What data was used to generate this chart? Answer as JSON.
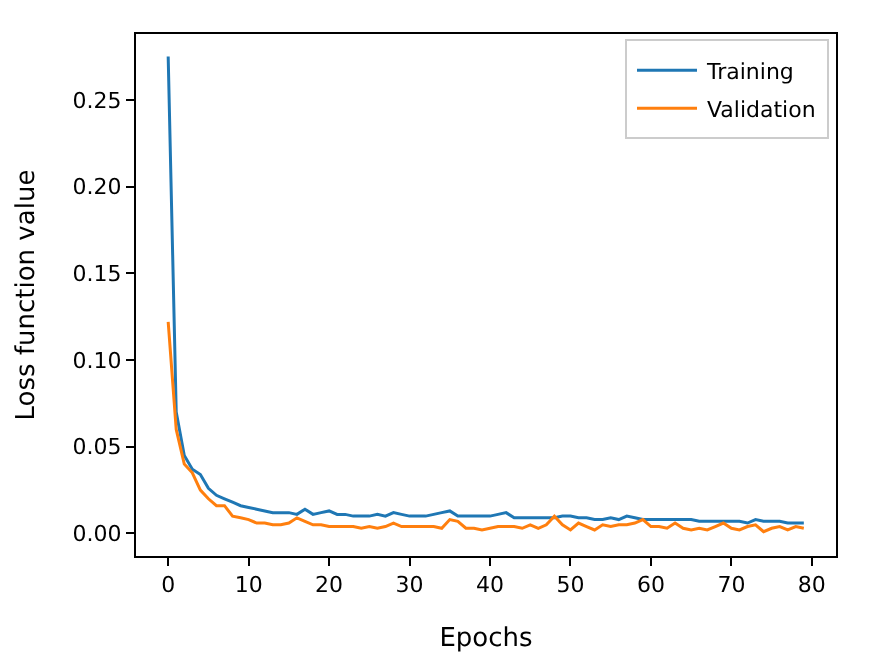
{
  "chart_data": {
    "type": "line",
    "xlabel": "Epochs",
    "ylabel": "Loss function value",
    "xlim": [
      -4,
      83
    ],
    "xticks": [
      0,
      10,
      20,
      30,
      40,
      50,
      60,
      70,
      80
    ],
    "ylim": [
      -0.013,
      0.288
    ],
    "yticks": [
      {
        "value": 0,
        "label": "0.00"
      },
      0.05,
      {
        "value": 0.1,
        "label": "0.10"
      },
      0.15,
      {
        "value": 0.2,
        "label": "0.20"
      },
      0.25
    ],
    "x": [
      0,
      1,
      2,
      3,
      4,
      5,
      6,
      7,
      8,
      9,
      10,
      11,
      12,
      13,
      14,
      15,
      16,
      17,
      18,
      19,
      20,
      21,
      22,
      23,
      24,
      25,
      26,
      27,
      28,
      29,
      30,
      31,
      32,
      33,
      34,
      35,
      36,
      37,
      38,
      39,
      40,
      41,
      42,
      43,
      44,
      45,
      46,
      47,
      48,
      49,
      50,
      51,
      52,
      53,
      54,
      55,
      56,
      57,
      58,
      59,
      60,
      61,
      62,
      63,
      64,
      65,
      66,
      67,
      68,
      69,
      70,
      71,
      72,
      73,
      74,
      75,
      76,
      77,
      78,
      79
    ],
    "legend": "top right",
    "series": [
      {
        "name": "Training",
        "color": "#1f77b4",
        "values": [
          0.275,
          0.07,
          0.045,
          0.037,
          0.034,
          0.026,
          0.022,
          0.02,
          0.018,
          0.016,
          0.015,
          0.014,
          0.013,
          0.012,
          0.012,
          0.012,
          0.011,
          0.014,
          0.011,
          0.012,
          0.013,
          0.011,
          0.011,
          0.01,
          0.01,
          0.01,
          0.011,
          0.01,
          0.012,
          0.011,
          0.01,
          0.01,
          0.01,
          0.011,
          0.012,
          0.013,
          0.01,
          0.01,
          0.01,
          0.01,
          0.01,
          0.011,
          0.012,
          0.009,
          0.009,
          0.009,
          0.009,
          0.009,
          0.009,
          0.01,
          0.01,
          0.009,
          0.009,
          0.008,
          0.008,
          0.009,
          0.008,
          0.01,
          0.009,
          0.008,
          0.008,
          0.008,
          0.008,
          0.008,
          0.008,
          0.008,
          0.007,
          0.007,
          0.007,
          0.007,
          0.007,
          0.007,
          0.006,
          0.008,
          0.007,
          0.007,
          0.007,
          0.006,
          0.006,
          0.006
        ]
      },
      {
        "name": "Validation",
        "color": "#ff7f0e",
        "values": [
          0.122,
          0.06,
          0.04,
          0.035,
          0.025,
          0.02,
          0.016,
          0.016,
          0.01,
          0.009,
          0.008,
          0.006,
          0.006,
          0.005,
          0.005,
          0.006,
          0.009,
          0.007,
          0.005,
          0.005,
          0.004,
          0.004,
          0.004,
          0.004,
          0.003,
          0.004,
          0.003,
          0.004,
          0.006,
          0.004,
          0.004,
          0.004,
          0.004,
          0.004,
          0.003,
          0.008,
          0.007,
          0.003,
          0.003,
          0.002,
          0.003,
          0.004,
          0.004,
          0.004,
          0.003,
          0.005,
          0.003,
          0.005,
          0.01,
          0.005,
          0.002,
          0.006,
          0.004,
          0.002,
          0.005,
          0.004,
          0.005,
          0.005,
          0.006,
          0.008,
          0.004,
          0.004,
          0.003,
          0.006,
          0.003,
          0.002,
          0.003,
          0.002,
          0.004,
          0.006,
          0.003,
          0.002,
          0.004,
          0.005,
          0.001,
          0.003,
          0.004,
          0.002,
          0.004,
          0.003
        ]
      }
    ]
  }
}
